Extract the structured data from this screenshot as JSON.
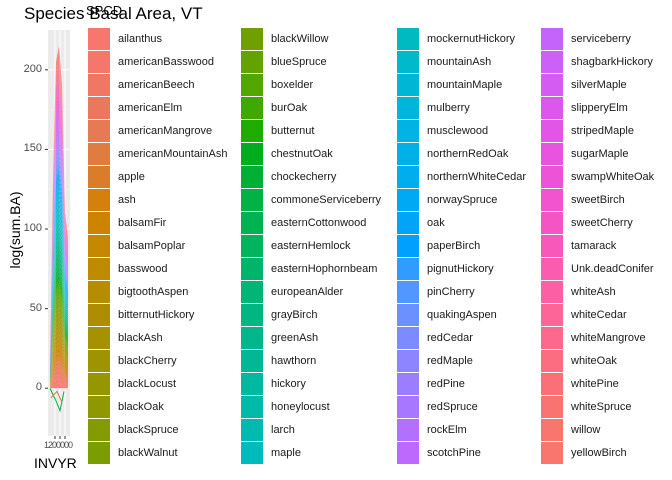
{
  "chart_data": {
    "type": "area",
    "title": "Species Basal Area, VT",
    "xlabel": "INVYR",
    "ylabel": "log(sum.BA)",
    "legend_title": "SPCD",
    "legend_position": "right",
    "y_ticks": [
      "0",
      "50",
      "100",
      "150",
      "200"
    ],
    "ylim": [
      -30,
      225
    ],
    "x_tick_text": "1200000",
    "stacked": true,
    "series": [
      {
        "name": "ailanthus",
        "color": "#F8766D"
      },
      {
        "name": "americanBasswood",
        "color": "#F5766A"
      },
      {
        "name": "americanBeech",
        "color": "#F07764"
      },
      {
        "name": "americanElm",
        "color": "#EB785C"
      },
      {
        "name": "americanMangrove",
        "color": "#E67A52"
      },
      {
        "name": "americanMountainAsh",
        "color": "#E07C40"
      },
      {
        "name": "apple",
        "color": "#DA7D2A"
      },
      {
        "name": "ash",
        "color": "#D3800D"
      },
      {
        "name": "balsamFir",
        "color": "#CC8300"
      },
      {
        "name": "balsamPoplar",
        "color": "#C58700"
      },
      {
        "name": "basswood",
        "color": "#BD8A00"
      },
      {
        "name": "bigtoothAspen",
        "color": "#B68C00"
      },
      {
        "name": "bitternutHickory",
        "color": "#AE8E00"
      },
      {
        "name": "blackAsh",
        "color": "#A69100"
      },
      {
        "name": "blackCherry",
        "color": "#9E9300"
      },
      {
        "name": "blackLocust",
        "color": "#969600"
      },
      {
        "name": "blackOak",
        "color": "#8E9800"
      },
      {
        "name": "blackSpruce",
        "color": "#849B00"
      },
      {
        "name": "blackWalnut",
        "color": "#7A9D00"
      },
      {
        "name": "blackWillow",
        "color": "#6FA000"
      },
      {
        "name": "blueSpruce",
        "color": "#62A300"
      },
      {
        "name": "boxelder",
        "color": "#53A600"
      },
      {
        "name": "burOak",
        "color": "#3FA800"
      },
      {
        "name": "butternut",
        "color": "#1FAB00"
      },
      {
        "name": "chestnutOak",
        "color": "#00AD1C"
      },
      {
        "name": "chockecherry",
        "color": "#00AF33"
      },
      {
        "name": "commoneServiceberry",
        "color": "#00B143"
      },
      {
        "name": "easternCottonwood",
        "color": "#00B250"
      },
      {
        "name": "easternHemlock",
        "color": "#00B35D"
      },
      {
        "name": "easternHophornbeam",
        "color": "#00B46A"
      },
      {
        "name": "europeanAlder",
        "color": "#00B576"
      },
      {
        "name": "grayBirch",
        "color": "#00B681"
      },
      {
        "name": "greenAsh",
        "color": "#00B78C"
      },
      {
        "name": "hawthorn",
        "color": "#00B896"
      },
      {
        "name": "hickory",
        "color": "#00B9A0"
      },
      {
        "name": "honeylocust",
        "color": "#00BAA9"
      },
      {
        "name": "larch",
        "color": "#00BAB2"
      },
      {
        "name": "maple",
        "color": "#00BBBB"
      },
      {
        "name": "mockernutHickory",
        "color": "#00BAC2"
      },
      {
        "name": "mountainAsh",
        "color": "#00B9CB"
      },
      {
        "name": "mountainMaple",
        "color": "#00B7D3"
      },
      {
        "name": "mulberry",
        "color": "#00B5DA"
      },
      {
        "name": "musclewood",
        "color": "#00B3E2"
      },
      {
        "name": "northernRedOak",
        "color": "#00B0E9"
      },
      {
        "name": "northernWhiteCedar",
        "color": "#00ADEF"
      },
      {
        "name": "norwaySpruce",
        "color": "#00A9F4"
      },
      {
        "name": "oak",
        "color": "#00A5F9"
      },
      {
        "name": "paperBirch",
        "color": "#00A1FC"
      },
      {
        "name": "pignutHickory",
        "color": "#309CFF"
      },
      {
        "name": "pinCherry",
        "color": "#5297FF"
      },
      {
        "name": "quakingAspen",
        "color": "#6A91FF"
      },
      {
        "name": "redCedar",
        "color": "#7C8BFF"
      },
      {
        "name": "redMaple",
        "color": "#8C85FF"
      },
      {
        "name": "redPine",
        "color": "#9A7EFF"
      },
      {
        "name": "redSpruce",
        "color": "#A777FF"
      },
      {
        "name": "rockElm",
        "color": "#B370FF"
      },
      {
        "name": "scotchPine",
        "color": "#BD69FE"
      },
      {
        "name": "serviceberry",
        "color": "#C564FB"
      },
      {
        "name": "shagbarkHickory",
        "color": "#CD60F7"
      },
      {
        "name": "silverMaple",
        "color": "#D55CF2"
      },
      {
        "name": "slipperyElm",
        "color": "#DC58ED"
      },
      {
        "name": "stripedMaple",
        "color": "#E255E6"
      },
      {
        "name": "sugarMaple",
        "color": "#E853DF"
      },
      {
        "name": "swampWhiteOak",
        "color": "#ED53D7"
      },
      {
        "name": "sweetBirch",
        "color": "#F253CE"
      },
      {
        "name": "sweetCherry",
        "color": "#F555C4"
      },
      {
        "name": "tamarack",
        "color": "#F858BA"
      },
      {
        "name": "Unk.deadConifer",
        "color": "#FA5CAF"
      },
      {
        "name": "whiteAsh",
        "color": "#FC60A4"
      },
      {
        "name": "whiteCedar",
        "color": "#FD6598"
      },
      {
        "name": "whiteMangrove",
        "color": "#FD698D"
      },
      {
        "name": "whiteOak",
        "color": "#FC6D81"
      },
      {
        "name": "whitePine",
        "color": "#FB7076"
      },
      {
        "name": "whiteSpruce",
        "color": "#F97370"
      },
      {
        "name": "willow",
        "color": "#F8766D"
      },
      {
        "name": "yellowBirch",
        "color": "#F8766D"
      }
    ]
  }
}
